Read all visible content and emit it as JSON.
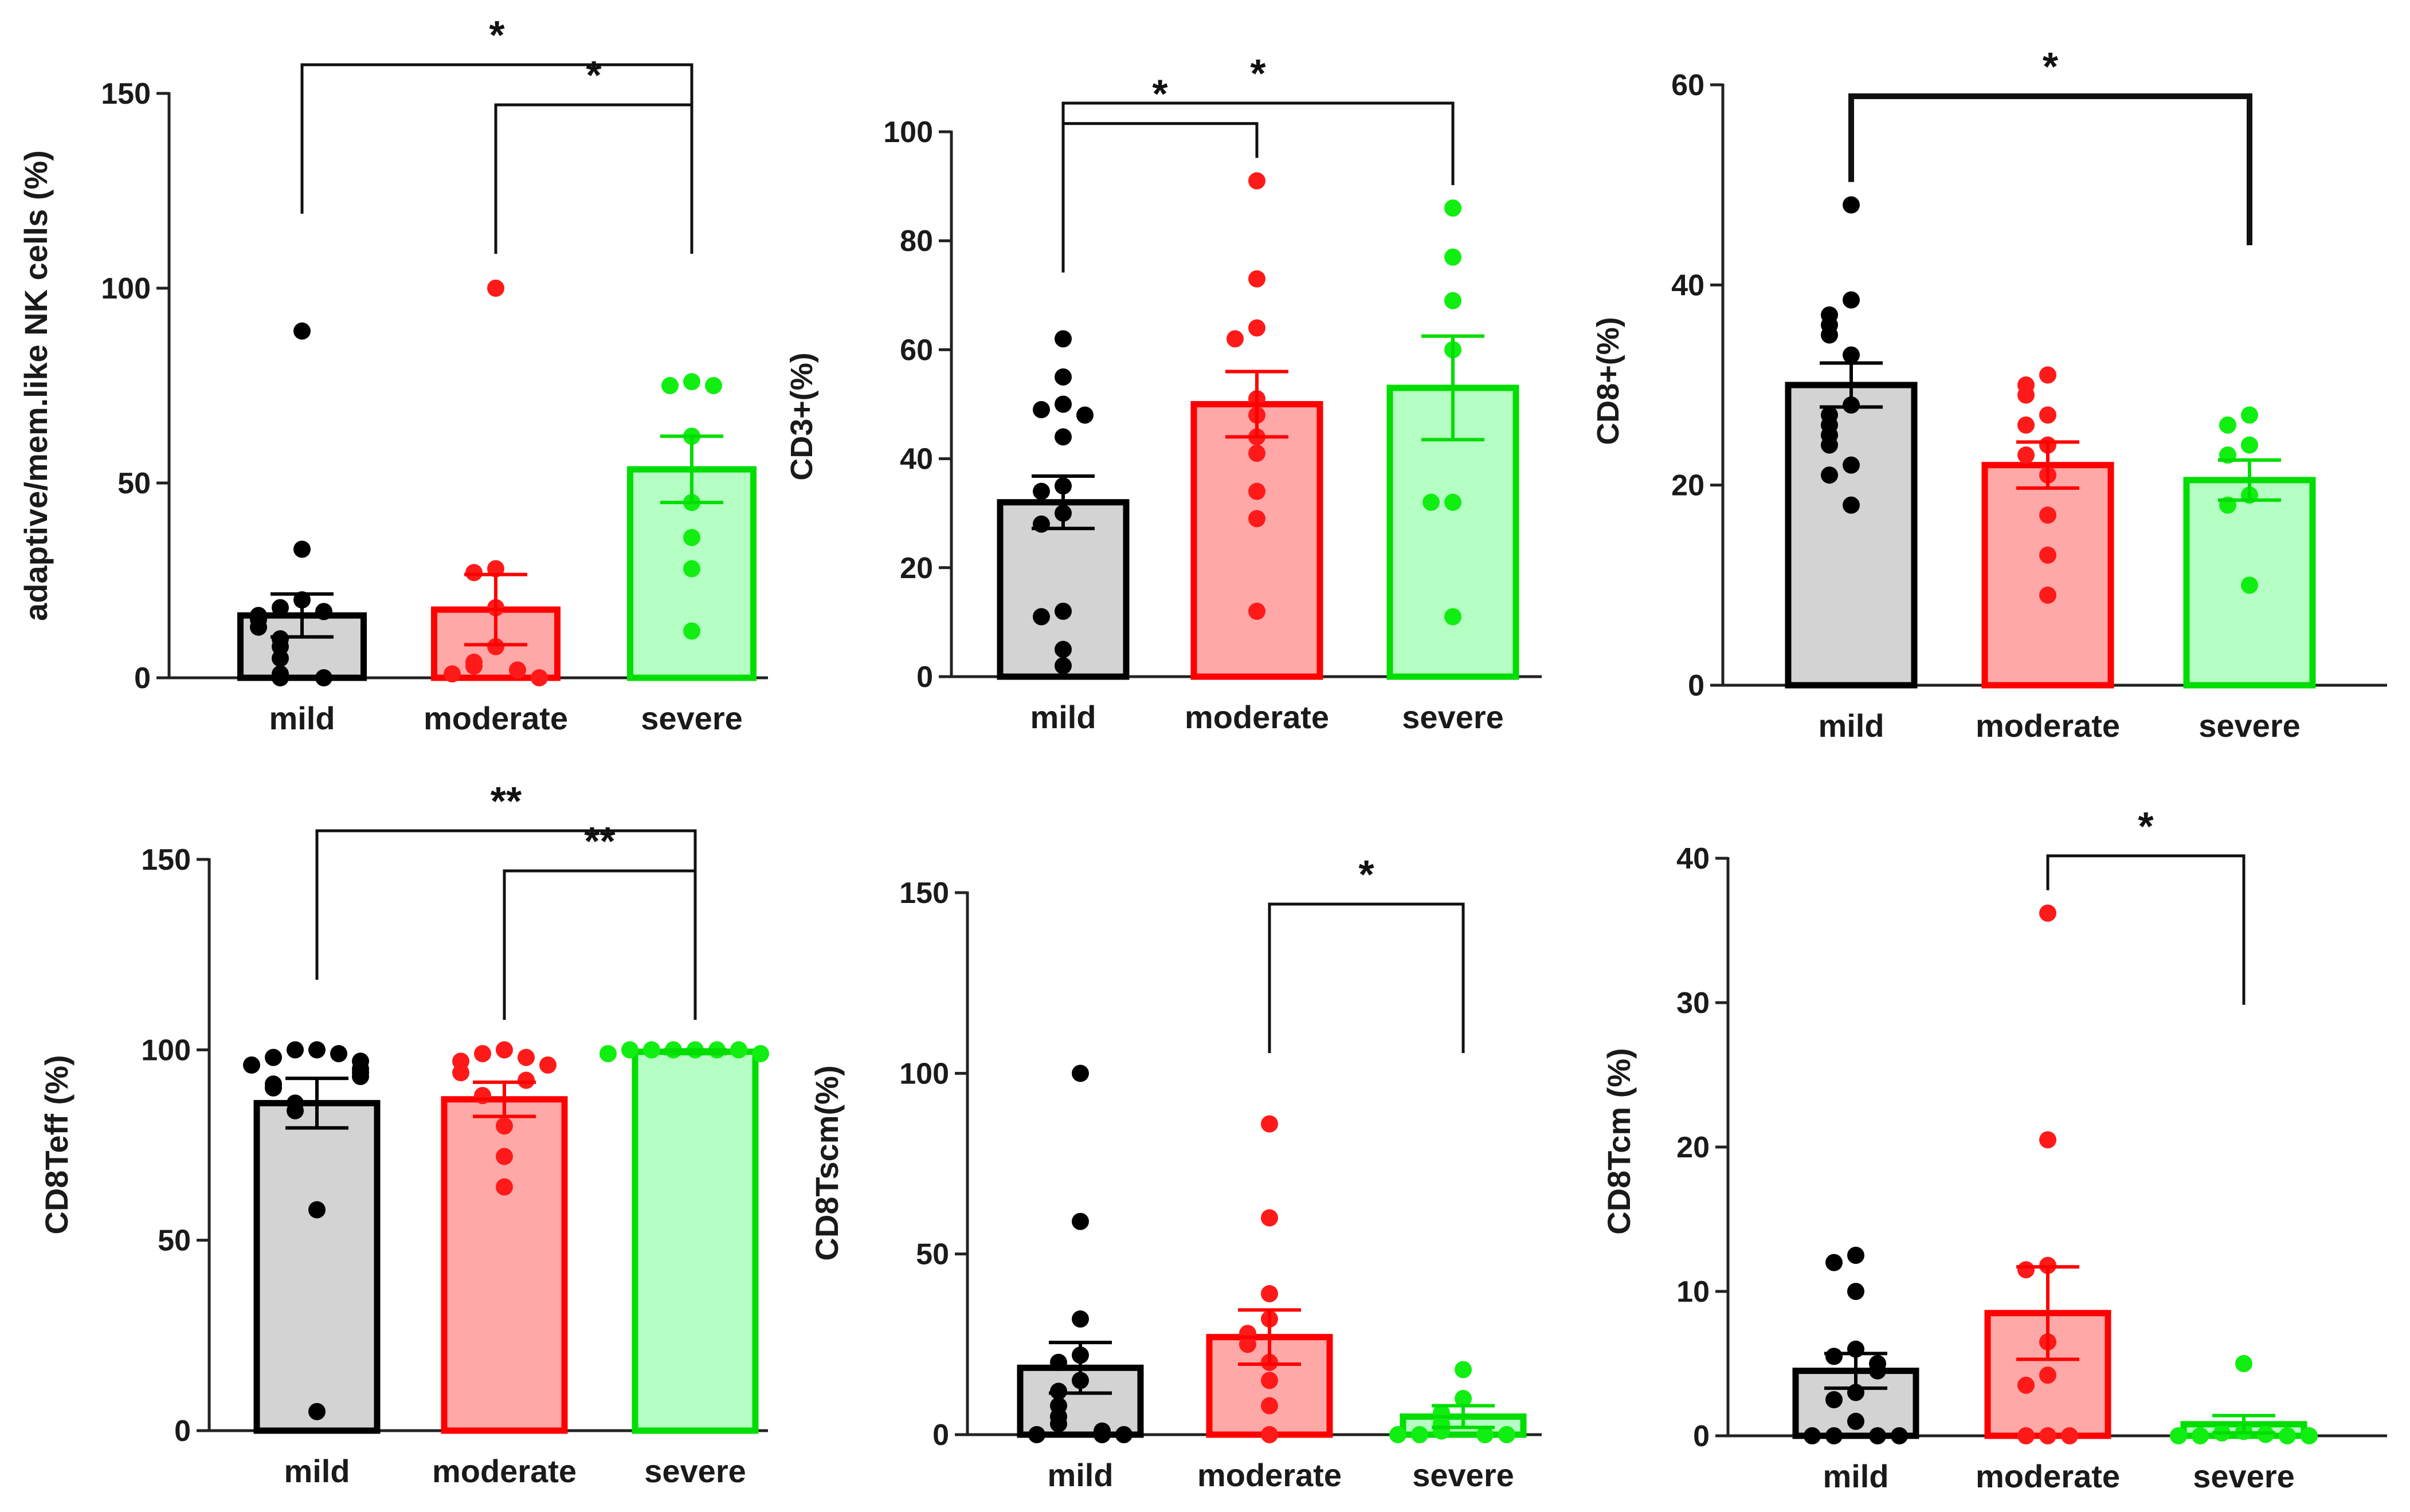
{
  "colors": {
    "mild_fill": "#d3d3d3",
    "mild_edge": "#000000",
    "mild_dot": "#000000",
    "moderate_fill": "#ffa8a8",
    "moderate_edge": "#ff0000",
    "moderate_dot": "#ff1a1a",
    "severe_fill": "#b6ffc4",
    "severe_edge": "#00dd00",
    "severe_dot": "#11ee11"
  },
  "chart_data": [
    {
      "type": "bar",
      "ylabel": "adaptive/mem.like NK cells (%)",
      "ylim": [
        0,
        150
      ],
      "yticks": [
        "0",
        "50",
        "100",
        "150"
      ],
      "yticks_values": [
        0,
        50,
        100,
        150
      ],
      "categories": [
        "mild",
        "moderate",
        "severe"
      ],
      "series": [
        {
          "name": "mild",
          "mean": 16,
          "sem": 5.5,
          "points": [
            89,
            33,
            20,
            18,
            17,
            16,
            15,
            13,
            10,
            8,
            5,
            1,
            0,
            0
          ]
        },
        {
          "name": "moderate",
          "mean": 17.5,
          "sem": 9,
          "points": [
            100,
            28,
            27,
            18,
            8,
            4,
            3,
            2,
            1,
            0
          ]
        },
        {
          "name": "severe",
          "mean": 53.5,
          "sem": 8.5,
          "points": [
            76,
            75,
            75,
            62,
            45,
            36,
            28,
            12
          ]
        }
      ],
      "significance": [
        {
          "from": "mild",
          "to": "severe",
          "label": "*"
        },
        {
          "from": "moderate",
          "to": "severe",
          "label": "*"
        }
      ]
    },
    {
      "type": "bar",
      "ylabel": "CD3+(%)",
      "ylim": [
        0,
        100
      ],
      "yticks": [
        "0",
        "20",
        "40",
        "60",
        "80",
        "100"
      ],
      "yticks_values": [
        0,
        20,
        40,
        60,
        80,
        100
      ],
      "categories": [
        "mild",
        "moderate",
        "severe"
      ],
      "series": [
        {
          "name": "mild",
          "mean": 32,
          "sem": 4.8,
          "points": [
            62,
            55,
            50,
            49,
            48,
            44,
            35,
            34,
            30,
            28,
            12,
            11,
            5,
            2
          ]
        },
        {
          "name": "moderate",
          "mean": 50,
          "sem": 6,
          "points": [
            91,
            73,
            64,
            62,
            51,
            48,
            44,
            41,
            34,
            29,
            12
          ]
        },
        {
          "name": "severe",
          "mean": 53,
          "sem": 9.5,
          "points": [
            86,
            77,
            69,
            60,
            32,
            32,
            11
          ]
        }
      ],
      "significance": [
        {
          "from": "mild",
          "to": "severe",
          "label": "*"
        },
        {
          "from": "mild",
          "to": "moderate",
          "label": "*"
        }
      ]
    },
    {
      "type": "bar",
      "ylabel": "CD8+(%)",
      "ylim": [
        0,
        60
      ],
      "yticks": [
        "0",
        "20",
        "40",
        "60"
      ],
      "yticks_values": [
        0,
        20,
        40,
        60
      ],
      "categories": [
        "mild",
        "moderate",
        "severe"
      ],
      "series": [
        {
          "name": "mild",
          "mean": 30,
          "sem": 2.2,
          "points": [
            48,
            38.5,
            37,
            36,
            35,
            33,
            28,
            27,
            26,
            25,
            24,
            22,
            21,
            18
          ]
        },
        {
          "name": "moderate",
          "mean": 22,
          "sem": 2.3,
          "points": [
            31,
            30,
            29,
            27,
            26,
            24,
            23,
            21,
            17,
            13,
            9
          ]
        },
        {
          "name": "severe",
          "mean": 20.5,
          "sem": 2,
          "points": [
            27,
            26,
            24,
            23,
            19,
            18,
            10
          ]
        }
      ],
      "significance": [
        {
          "from": "mild",
          "to": "severe",
          "label": "*"
        }
      ]
    },
    {
      "type": "bar",
      "ylabel": "CD8Teff (%)",
      "ylim": [
        0,
        150
      ],
      "yticks": [
        "0",
        "50",
        "100",
        "150"
      ],
      "yticks_values": [
        0,
        50,
        100,
        150
      ],
      "categories": [
        "mild",
        "moderate",
        "severe"
      ],
      "series": [
        {
          "name": "mild",
          "mean": 86,
          "sem": 6.5,
          "points": [
            100,
            100,
            99,
            98,
            97,
            96,
            95,
            94,
            93,
            91,
            90,
            86,
            84,
            58,
            5
          ]
        },
        {
          "name": "moderate",
          "mean": 87,
          "sem": 4.5,
          "points": [
            100,
            99,
            98,
            97,
            96,
            94,
            92,
            88,
            80,
            72,
            64
          ]
        },
        {
          "name": "severe",
          "mean": 99.5,
          "sem": 0.5,
          "points": [
            100,
            100,
            100,
            100,
            100,
            100,
            99,
            99
          ]
        }
      ],
      "significance": [
        {
          "from": "mild",
          "to": "severe",
          "label": "**"
        },
        {
          "from": "moderate",
          "to": "severe",
          "label": "**"
        }
      ]
    },
    {
      "type": "bar",
      "ylabel": "CD8Tscm(%)",
      "ylim": [
        0,
        150
      ],
      "yticks": [
        "0",
        "50",
        "100",
        "150"
      ],
      "yticks_values": [
        0,
        50,
        100,
        150
      ],
      "categories": [
        "mild",
        "moderate",
        "severe"
      ],
      "series": [
        {
          "name": "mild",
          "mean": 18.5,
          "sem": 7,
          "points": [
            100,
            59,
            32,
            22,
            20,
            15,
            12,
            8,
            5,
            3,
            1,
            0,
            0,
            0
          ]
        },
        {
          "name": "moderate",
          "mean": 27,
          "sem": 7.5,
          "points": [
            86,
            60,
            39,
            32,
            28,
            25,
            20,
            15,
            8,
            0
          ]
        },
        {
          "name": "severe",
          "mean": 5,
          "sem": 3,
          "points": [
            18,
            10,
            6,
            3,
            1,
            0,
            0,
            0,
            0
          ]
        }
      ],
      "significance": [
        {
          "from": "moderate",
          "to": "severe",
          "label": "*"
        }
      ]
    },
    {
      "type": "bar",
      "ylabel": "CD8Tcm (%)",
      "ylim": [
        0,
        40
      ],
      "yticks": [
        "0",
        "10",
        "20",
        "30",
        "40"
      ],
      "yticks_values": [
        0,
        10,
        20,
        30,
        40
      ],
      "categories": [
        "mild",
        "moderate",
        "severe"
      ],
      "series": [
        {
          "name": "mild",
          "mean": 4.5,
          "sem": 1.2,
          "points": [
            12.5,
            12,
            10,
            6,
            5.5,
            5,
            4.5,
            3,
            2.5,
            1,
            0,
            0,
            0,
            0
          ]
        },
        {
          "name": "moderate",
          "mean": 8.5,
          "sem": 3.2,
          "points": [
            36.2,
            20.5,
            11.8,
            11.5,
            6.5,
            4.2,
            3.5,
            0,
            0,
            0
          ]
        },
        {
          "name": "severe",
          "mean": 0.8,
          "sem": 0.6,
          "points": [
            5,
            0.3,
            0.2,
            0.1,
            0,
            0,
            0,
            0
          ]
        }
      ],
      "significance": [
        {
          "from": "moderate",
          "to": "severe",
          "label": "*"
        }
      ]
    }
  ]
}
